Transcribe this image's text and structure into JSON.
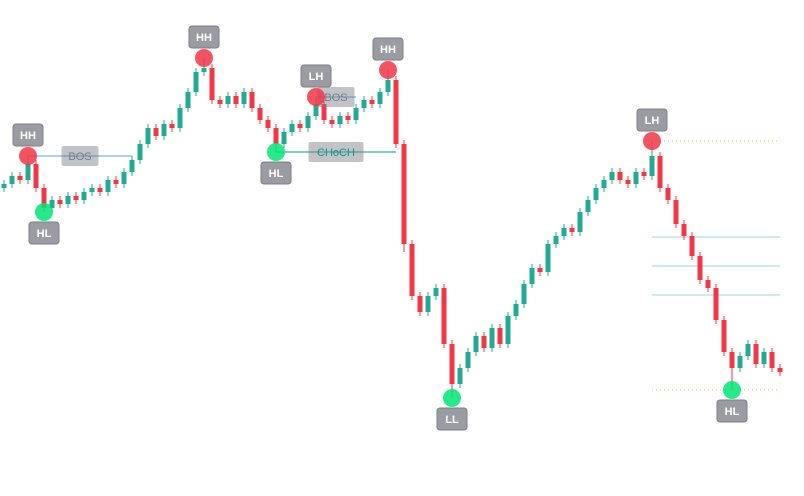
{
  "chart_data": {
    "type": "candlestick",
    "ylim": [
      0,
      124
    ],
    "up_color": "#22ab94",
    "down_color": "#f23645",
    "open": [
      77,
      78,
      80,
      79,
      83,
      77,
      72,
      74,
      73,
      75,
      74,
      76,
      77,
      76,
      79,
      78,
      81,
      84,
      88,
      92,
      90,
      93,
      92,
      97,
      101,
      106,
      107,
      99,
      98,
      100,
      98,
      101,
      97,
      94,
      92,
      88,
      91,
      93,
      92,
      95,
      98,
      94,
      93,
      95,
      94,
      97,
      99,
      98,
      101,
      104,
      88,
      63,
      50,
      46,
      50,
      52,
      38,
      28,
      32,
      36,
      40,
      37,
      42,
      38,
      45,
      48,
      53,
      57,
      56,
      63,
      65,
      67,
      66,
      71,
      74,
      77,
      79,
      81,
      79,
      78,
      81,
      80,
      85,
      77,
      74,
      68,
      65,
      60,
      54,
      52,
      44,
      36,
      32,
      35,
      38,
      33,
      36,
      32
    ],
    "high": [
      79,
      81,
      81,
      85,
      84,
      78,
      75,
      75,
      76,
      76,
      77,
      78,
      78,
      80,
      80,
      82,
      85,
      89,
      93,
      93,
      94,
      94,
      98,
      102,
      107,
      109.5,
      108,
      100,
      101,
      101,
      102,
      102,
      98,
      95,
      93,
      92,
      94,
      94,
      96,
      99.75,
      99,
      95,
      96,
      96,
      98,
      100,
      100,
      102,
      106.5,
      105,
      89,
      64,
      51,
      51,
      53,
      53,
      39,
      33,
      37,
      41,
      41,
      43,
      43,
      46,
      49,
      54,
      58,
      58,
      64,
      66,
      68,
      68,
      72,
      75,
      78,
      80,
      82,
      82,
      80,
      82,
      82,
      88.75,
      86,
      78,
      75,
      69,
      66,
      61,
      55,
      53,
      45,
      37,
      36,
      39,
      39,
      37,
      37,
      33
    ],
    "low": [
      76,
      77,
      78,
      78,
      76,
      71,
      71,
      72,
      72,
      73,
      73,
      75,
      75,
      75,
      77,
      77,
      80,
      83,
      87,
      89,
      89,
      91,
      91,
      96,
      100,
      105,
      98,
      97,
      97,
      97,
      97,
      96,
      93,
      91,
      86,
      87,
      90,
      91,
      91,
      94,
      93,
      92,
      92,
      93,
      93,
      96,
      97,
      97,
      100,
      87,
      61,
      49,
      45,
      45,
      49,
      37,
      24.5,
      27,
      31,
      35,
      36,
      36,
      37,
      37,
      44,
      47,
      52,
      55,
      55,
      62,
      64,
      65,
      65,
      70,
      73,
      76,
      78,
      78,
      77,
      77,
      79,
      79,
      76,
      73,
      67,
      64,
      59,
      53,
      51,
      43,
      35,
      26.5,
      31,
      34,
      32,
      32,
      31,
      30
    ],
    "close": [
      78,
      80,
      79,
      83,
      77,
      72,
      74,
      73,
      75,
      74,
      76,
      77,
      76,
      79,
      78,
      81,
      84,
      88,
      92,
      90,
      93,
      92,
      97,
      101,
      106,
      107,
      99,
      98,
      100,
      98,
      101,
      97,
      94,
      92,
      88,
      91,
      93,
      92,
      95,
      98,
      94,
      93,
      95,
      94,
      97,
      99,
      98,
      101,
      104,
      88,
      63,
      50,
      46,
      50,
      52,
      38,
      28,
      32,
      36,
      40,
      37,
      42,
      38,
      45,
      48,
      53,
      57,
      56,
      63,
      65,
      67,
      66,
      71,
      74,
      77,
      79,
      81,
      79,
      78,
      81,
      80,
      85,
      77,
      74,
      68,
      65,
      60,
      54,
      52,
      44,
      36,
      32,
      35,
      38,
      33,
      36,
      32,
      31
    ],
    "swings": [
      {
        "text": "HH",
        "candle": 3,
        "at": "high"
      },
      {
        "text": "HL",
        "candle": 5,
        "at": "low"
      },
      {
        "text": "HH",
        "candle": 25,
        "at": "high"
      },
      {
        "text": "HL",
        "candle": 34,
        "at": "low"
      },
      {
        "text": "LH",
        "candle": 39,
        "at": "high"
      },
      {
        "text": "HH",
        "candle": 48,
        "at": "high"
      },
      {
        "text": "LL",
        "candle": 56,
        "at": "low"
      },
      {
        "text": "LH",
        "candle": 81,
        "at": "high"
      },
      {
        "text": "HL",
        "candle": 91,
        "at": "low"
      }
    ],
    "breaks": [
      {
        "text": "BOS",
        "from": 3,
        "to": 16,
        "price": 85,
        "color": "#5b9cf6"
      },
      {
        "text": "BOS",
        "from": 39,
        "to": 44,
        "price": 99.75,
        "color": "#5b9cf6"
      },
      {
        "text": "CHoCH",
        "from": 34,
        "to": 49,
        "price": 86,
        "color": "#089981"
      }
    ],
    "levels": [
      {
        "from": 81,
        "to": 97,
        "price": 88.75,
        "color": "#e8c547",
        "dashed": true
      },
      {
        "from": 81,
        "to": 97,
        "price": 64.75,
        "color": "#9fd3e6",
        "dashed": false
      },
      {
        "from": 81,
        "to": 97,
        "price": 57.5,
        "color": "#9fd3e6",
        "dashed": false
      },
      {
        "from": 81,
        "to": 97,
        "price": 50.25,
        "color": "#9fd3e6",
        "dashed": false
      },
      {
        "from": 81,
        "to": 97,
        "price": 26.5,
        "color": "#e8c547",
        "dashed": true
      }
    ]
  }
}
